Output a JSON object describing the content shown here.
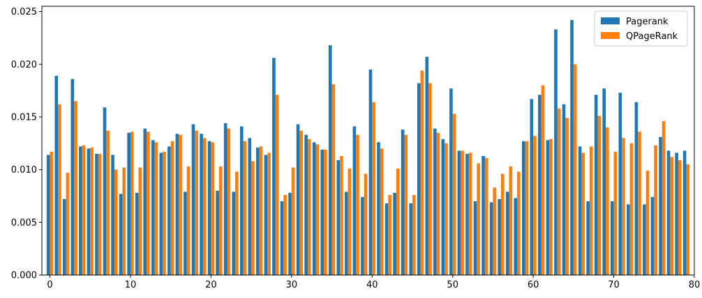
{
  "chart_data": {
    "type": "bar",
    "title": "",
    "xlabel": "",
    "ylabel": "",
    "xlim": [
      -1,
      80
    ],
    "ylim": [
      0,
      0.0255
    ],
    "xticks": [
      0,
      10,
      20,
      30,
      40,
      50,
      60,
      70,
      80
    ],
    "xtick_labels": [
      "0",
      "10",
      "20",
      "30",
      "40",
      "50",
      "60",
      "70",
      "80"
    ],
    "yticks": [
      0,
      0.005,
      0.01,
      0.015,
      0.02,
      0.025
    ],
    "ytick_labels": [
      "0.000",
      "0.005",
      "0.010",
      "0.015",
      "0.020",
      "0.025"
    ],
    "grid": false,
    "legend_position": "top-right",
    "x": [
      0,
      1,
      2,
      3,
      4,
      5,
      6,
      7,
      8,
      9,
      10,
      11,
      12,
      13,
      14,
      15,
      16,
      17,
      18,
      19,
      20,
      21,
      22,
      23,
      24,
      25,
      26,
      27,
      28,
      29,
      30,
      31,
      32,
      33,
      34,
      35,
      36,
      37,
      38,
      39,
      40,
      41,
      42,
      43,
      44,
      45,
      46,
      47,
      48,
      49,
      50,
      51,
      52,
      53,
      54,
      55,
      56,
      57,
      58,
      59,
      60,
      61,
      62,
      63,
      64,
      65,
      66,
      67,
      68,
      69,
      70,
      71,
      72,
      73,
      74,
      75,
      76,
      77,
      78,
      79
    ],
    "series": [
      {
        "name": "Pagerank",
        "color": "#1f77b4",
        "values": [
          0.0114,
          0.0189,
          0.0072,
          0.0186,
          0.0122,
          0.012,
          0.0115,
          0.0159,
          0.0114,
          0.0077,
          0.0135,
          0.0078,
          0.0139,
          0.0128,
          0.0116,
          0.0122,
          0.0134,
          0.0079,
          0.0143,
          0.0134,
          0.0127,
          0.008,
          0.0144,
          0.0079,
          0.0141,
          0.013,
          0.0121,
          0.0114,
          0.0206,
          0.007,
          0.0078,
          0.0143,
          0.0133,
          0.0126,
          0.0119,
          0.0218,
          0.0109,
          0.0079,
          0.0141,
          0.0074,
          0.0195,
          0.0126,
          0.0068,
          0.0078,
          0.0138,
          0.0068,
          0.0182,
          0.0207,
          0.0139,
          0.0129,
          0.0177,
          0.0118,
          0.0115,
          0.007,
          0.0113,
          0.0069,
          0.0072,
          0.0079,
          0.0073,
          0.0127,
          0.0167,
          0.0171,
          0.0128,
          0.0233,
          0.0162,
          0.0242,
          0.0122,
          0.007,
          0.0171,
          0.0177,
          0.007,
          0.0173,
          0.0067,
          0.0164,
          0.0067,
          0.0074,
          0.0131,
          0.0118,
          0.0116,
          0.0118
        ]
      },
      {
        "name": "QPageRank",
        "color": "#ff7f0e",
        "values": [
          0.0117,
          0.0162,
          0.0097,
          0.0165,
          0.0123,
          0.0121,
          0.0115,
          0.0137,
          0.01,
          0.0102,
          0.0136,
          0.0102,
          0.0136,
          0.0126,
          0.0117,
          0.0127,
          0.0133,
          0.0103,
          0.0137,
          0.013,
          0.0126,
          0.0103,
          0.0139,
          0.0098,
          0.0127,
          0.0108,
          0.0122,
          0.0116,
          0.0171,
          0.0076,
          0.0102,
          0.0137,
          0.0129,
          0.0124,
          0.0119,
          0.0181,
          0.0113,
          0.0101,
          0.0133,
          0.0096,
          0.0164,
          0.012,
          0.0076,
          0.0101,
          0.0133,
          0.0076,
          0.0194,
          0.0182,
          0.0135,
          0.0125,
          0.0153,
          0.0118,
          0.0116,
          0.0106,
          0.0111,
          0.0083,
          0.0096,
          0.0103,
          0.0098,
          0.0127,
          0.0132,
          0.018,
          0.0129,
          0.0158,
          0.0149,
          0.02,
          0.0116,
          0.0122,
          0.0151,
          0.014,
          0.0117,
          0.013,
          0.0125,
          0.0136,
          0.0099,
          0.0123,
          0.0146,
          0.0112,
          0.0109,
          0.0105
        ]
      }
    ]
  }
}
